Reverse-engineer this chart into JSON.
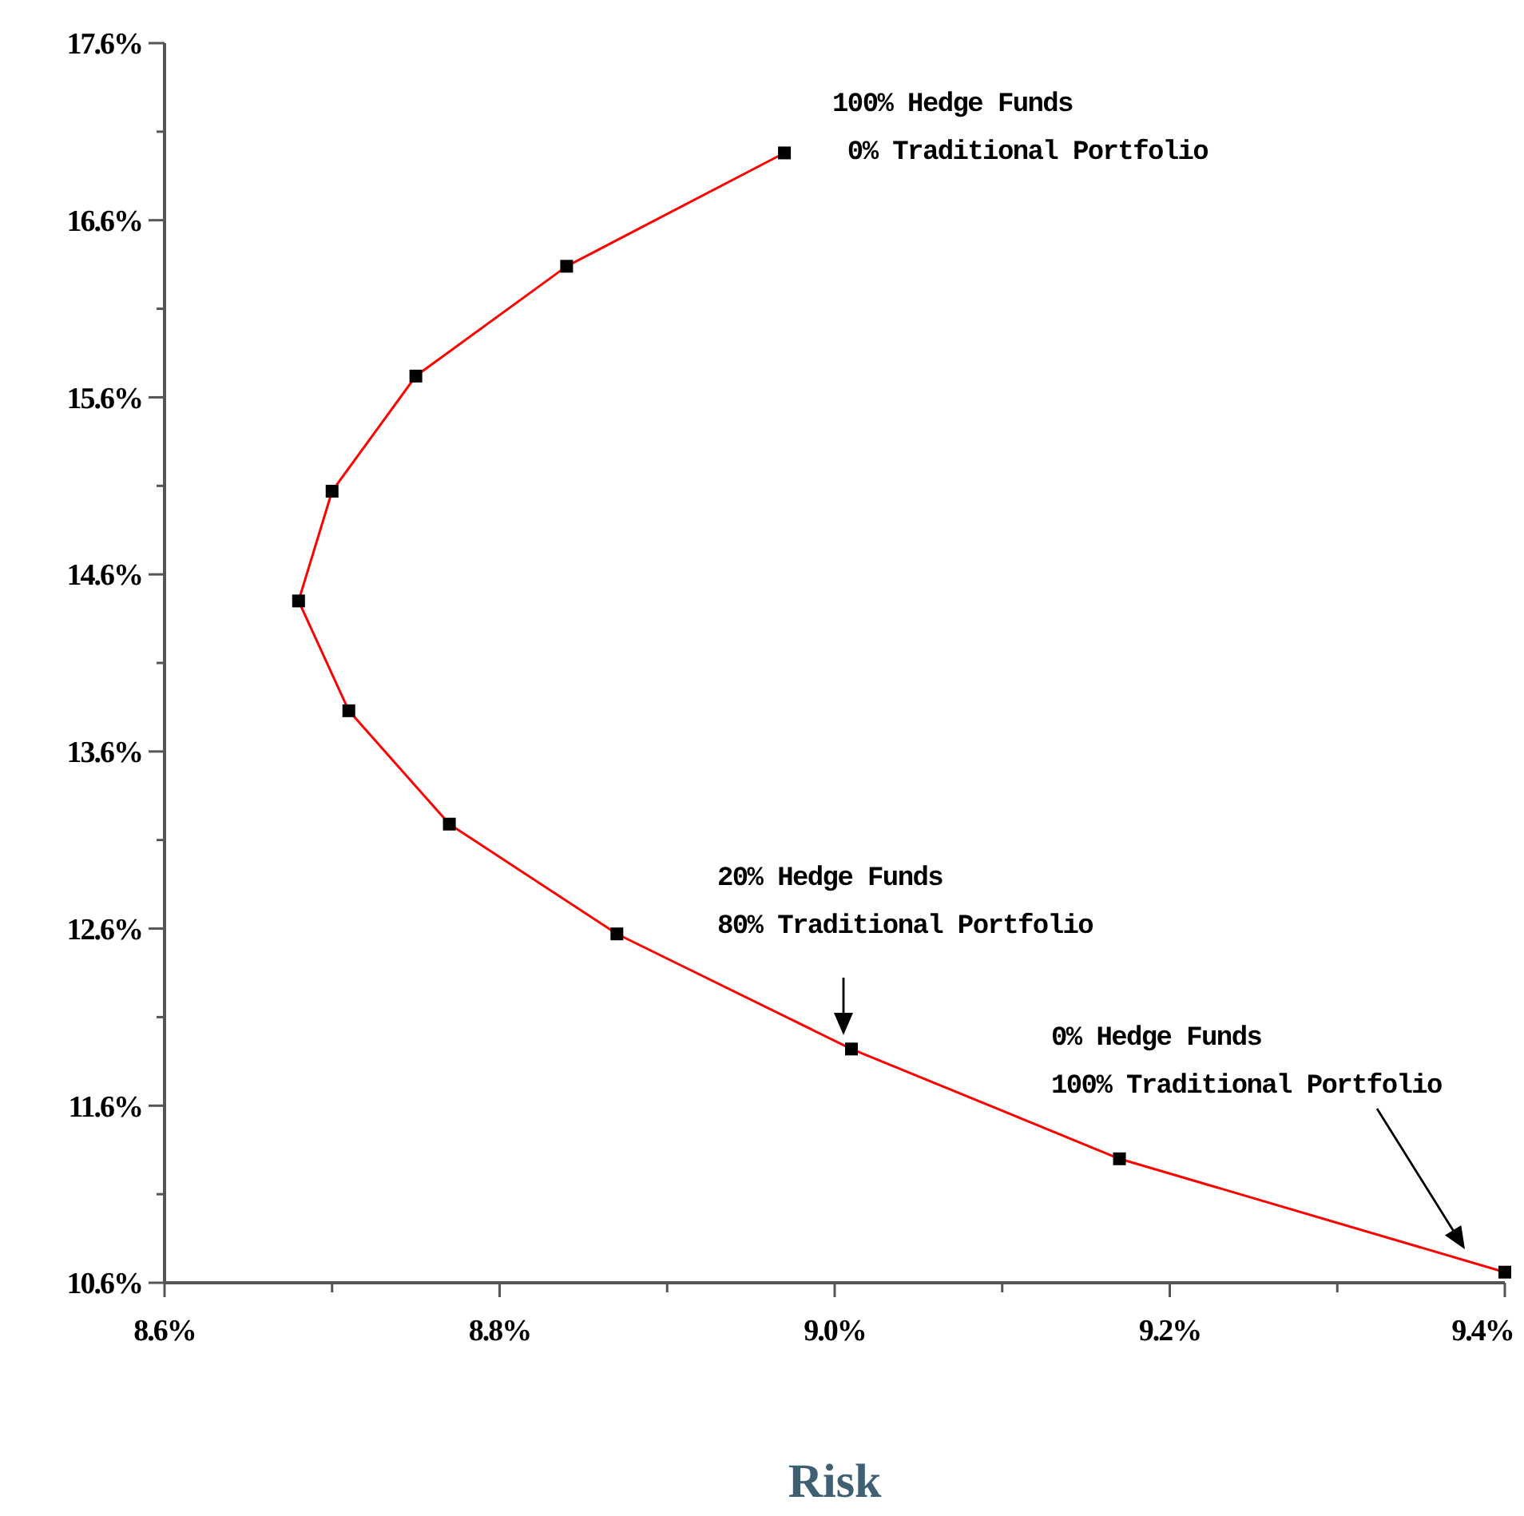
{
  "chart_data": {
    "type": "line",
    "xlabel": "Risk",
    "color": "#ff0000",
    "marker": "square",
    "line_style": "solid",
    "grid": false,
    "x": [
      8.97,
      8.84,
      8.75,
      8.7,
      8.68,
      8.71,
      8.77,
      8.87,
      9.01,
      9.17,
      9.4
    ],
    "values": [
      16.98,
      16.34,
      15.72,
      15.07,
      14.45,
      13.83,
      13.19,
      12.57,
      11.92,
      11.3,
      10.66
    ],
    "xlim": [
      8.6,
      9.4
    ],
    "xticks": [
      {
        "value": 8.6,
        "label": "8.6%"
      },
      {
        "value": 8.7,
        "label": null
      },
      {
        "value": 8.8,
        "label": "8.8%"
      },
      {
        "value": 8.9,
        "label": null
      },
      {
        "value": 9.0,
        "label": "9.0%"
      },
      {
        "value": 9.1,
        "label": null
      },
      {
        "value": 9.2,
        "label": "9.2%"
      },
      {
        "value": 9.3,
        "label": null
      },
      {
        "value": 9.4,
        "label": "9.4%"
      }
    ],
    "ylim": [
      10.6,
      17.6
    ],
    "yticks": [
      {
        "value": 10.6,
        "label": "10.6%"
      },
      {
        "value": 11.1,
        "label": null
      },
      {
        "value": 11.6,
        "label": "11.6%"
      },
      {
        "value": 12.1,
        "label": null
      },
      {
        "value": 12.6,
        "label": "12.6%"
      },
      {
        "value": 13.1,
        "label": null
      },
      {
        "value": 13.6,
        "label": "13.6%"
      },
      {
        "value": 14.1,
        "label": null
      },
      {
        "value": 14.6,
        "label": "14.6%"
      },
      {
        "value": 15.1,
        "label": null
      },
      {
        "value": 15.6,
        "label": "15.6%"
      },
      {
        "value": 16.1,
        "label": null
      },
      {
        "value": 16.6,
        "label": "16.6%"
      },
      {
        "value": 17.1,
        "label": null
      },
      {
        "value": 17.6,
        "label": "17.6%"
      }
    ],
    "annotations": [
      {
        "text": "100% Hedge Funds\n 0% Traditional Portfolio",
        "x": 8.97,
        "y": 16.98
      },
      "20% Hedge Funds\n80% Traditional Portfolio",
      "0% Hedge Funds\n100% Traditional Portfolio"
    ]
  }
}
